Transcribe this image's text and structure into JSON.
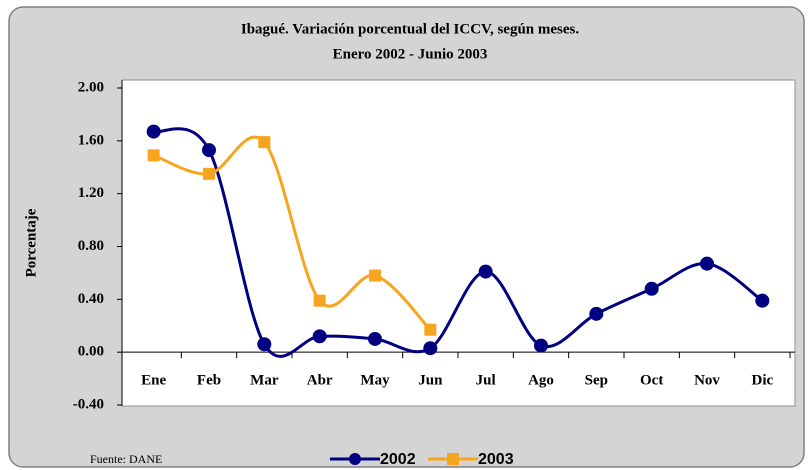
{
  "chart_data": {
    "type": "line",
    "title": "Ibagué. Variación porcentual del ICCV, según meses.",
    "subtitle": "Enero 2002 - Junio 2003",
    "y_label": "Porcentaje",
    "source": "Fuente: DANE",
    "categories": [
      "Ene",
      "Feb",
      "Mar",
      "Abr",
      "May",
      "Jun",
      "Jul",
      "Ago",
      "Sep",
      "Oct",
      "Nov",
      "Dic"
    ],
    "series": [
      {
        "name": "2002",
        "color": "#000080",
        "marker": "circle",
        "values": [
          1.67,
          1.53,
          0.06,
          0.12,
          0.1,
          0.03,
          0.61,
          0.05,
          0.29,
          0.48,
          0.67,
          0.39
        ]
      },
      {
        "name": "2003",
        "color": "#f7a51e",
        "marker": "square",
        "values": [
          1.49,
          1.35,
          1.59,
          0.39,
          0.58,
          0.17,
          null,
          null,
          null,
          null,
          null,
          null
        ]
      }
    ],
    "ylim": [
      -0.4,
      2.0
    ],
    "yticks": [
      {
        "value": -0.4,
        "label": "-0.40"
      },
      {
        "value": 0,
        "label": "0.00"
      },
      {
        "value": 0.4,
        "label": "0.40"
      },
      {
        "value": 0.8,
        "label": "0.80"
      },
      {
        "value": 1.2,
        "label": "1.20"
      },
      {
        "value": 1.6,
        "label": "1.60"
      },
      {
        "value": 2.0,
        "label": "2.00"
      }
    ],
    "smooth": true
  }
}
